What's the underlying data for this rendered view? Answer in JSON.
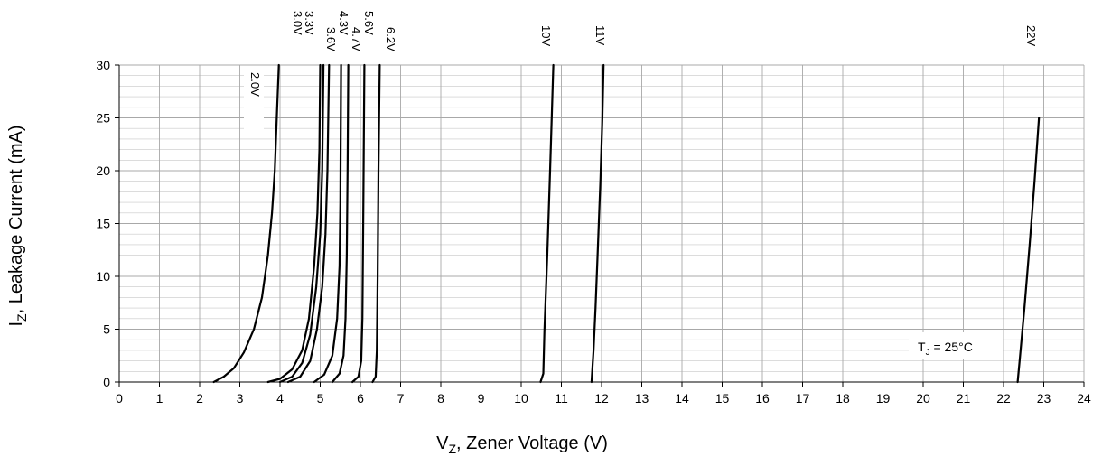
{
  "chart_data": {
    "type": "line",
    "xlabel": "V",
    "xlabel_sub": "Z",
    "xlabel_rest": ", Zener Voltage (V)",
    "ylabel": "I",
    "ylabel_sub": "Z",
    "ylabel_rest": ", Leakage Current (mA)",
    "xlim": [
      0,
      24
    ],
    "ylim": [
      0,
      30
    ],
    "x_ticks": [
      0,
      1,
      2,
      3,
      4,
      5,
      6,
      7,
      8,
      9,
      10,
      11,
      12,
      13,
      14,
      15,
      16,
      17,
      18,
      19,
      20,
      21,
      22,
      23,
      24
    ],
    "y_ticks": [
      0,
      5,
      10,
      15,
      20,
      25,
      30
    ],
    "grid": true,
    "annotation": {
      "text_main": "T",
      "text_sub": "J",
      "text_rest": " = 25°C"
    },
    "series": [
      {
        "name": "2.0V",
        "points": [
          [
            2.35,
            0
          ],
          [
            2.6,
            0.5
          ],
          [
            2.85,
            1.3
          ],
          [
            3.1,
            2.8
          ],
          [
            3.35,
            5
          ],
          [
            3.55,
            8
          ],
          [
            3.7,
            12
          ],
          [
            3.8,
            16
          ],
          [
            3.87,
            20
          ],
          [
            3.92,
            25
          ],
          [
            3.97,
            30
          ]
        ]
      },
      {
        "name": "3.0V",
        "points": [
          [
            3.7,
            0
          ],
          [
            4.0,
            0.3
          ],
          [
            4.3,
            1.2
          ],
          [
            4.55,
            3
          ],
          [
            4.72,
            6
          ],
          [
            4.85,
            11
          ],
          [
            4.93,
            16
          ],
          [
            4.98,
            22
          ],
          [
            5.0,
            30
          ]
        ]
      },
      {
        "name": "3.3V",
        "points": [
          [
            4.0,
            0
          ],
          [
            4.3,
            0.5
          ],
          [
            4.55,
            1.8
          ],
          [
            4.75,
            4.5
          ],
          [
            4.9,
            9
          ],
          [
            5.0,
            14
          ],
          [
            5.05,
            20
          ],
          [
            5.08,
            30
          ]
        ]
      },
      {
        "name": "3.6V",
        "points": [
          [
            4.2,
            0
          ],
          [
            4.5,
            0.5
          ],
          [
            4.75,
            2
          ],
          [
            4.92,
            5
          ],
          [
            5.05,
            9
          ],
          [
            5.13,
            14
          ],
          [
            5.18,
            20
          ],
          [
            5.22,
            30
          ]
        ]
      },
      {
        "name": "4.3V",
        "points": [
          [
            4.85,
            0
          ],
          [
            5.1,
            0.7
          ],
          [
            5.3,
            2.5
          ],
          [
            5.42,
            6
          ],
          [
            5.48,
            11
          ],
          [
            5.5,
            17
          ],
          [
            5.52,
            30
          ]
        ]
      },
      {
        "name": "4.7V",
        "points": [
          [
            5.3,
            0
          ],
          [
            5.48,
            0.8
          ],
          [
            5.58,
            2.5
          ],
          [
            5.63,
            6
          ],
          [
            5.66,
            12
          ],
          [
            5.68,
            20
          ],
          [
            5.7,
            30
          ]
        ]
      },
      {
        "name": "5.6V",
        "points": [
          [
            5.8,
            0
          ],
          [
            5.95,
            0.5
          ],
          [
            6.02,
            2
          ],
          [
            6.05,
            6
          ],
          [
            6.07,
            15
          ],
          [
            6.1,
            30
          ]
        ]
      },
      {
        "name": "6.2V",
        "points": [
          [
            6.3,
            0
          ],
          [
            6.38,
            0.5
          ],
          [
            6.41,
            3
          ],
          [
            6.43,
            10
          ],
          [
            6.45,
            20
          ],
          [
            6.48,
            30
          ]
        ]
      },
      {
        "name": "10V",
        "points": [
          [
            10.48,
            0
          ],
          [
            10.55,
            0.8
          ],
          [
            10.58,
            5
          ],
          [
            10.65,
            12
          ],
          [
            10.72,
            20
          ],
          [
            10.8,
            30
          ]
        ]
      },
      {
        "name": "11V",
        "points": [
          [
            11.75,
            0
          ],
          [
            11.8,
            3
          ],
          [
            11.85,
            7
          ],
          [
            11.9,
            12
          ],
          [
            11.97,
            19
          ],
          [
            12.02,
            25
          ],
          [
            12.05,
            30
          ]
        ]
      },
      {
        "name": "22V",
        "points": [
          [
            22.35,
            0
          ],
          [
            22.4,
            2
          ],
          [
            22.52,
            7
          ],
          [
            22.65,
            13
          ],
          [
            22.77,
            19
          ],
          [
            22.88,
            25
          ]
        ]
      }
    ]
  }
}
